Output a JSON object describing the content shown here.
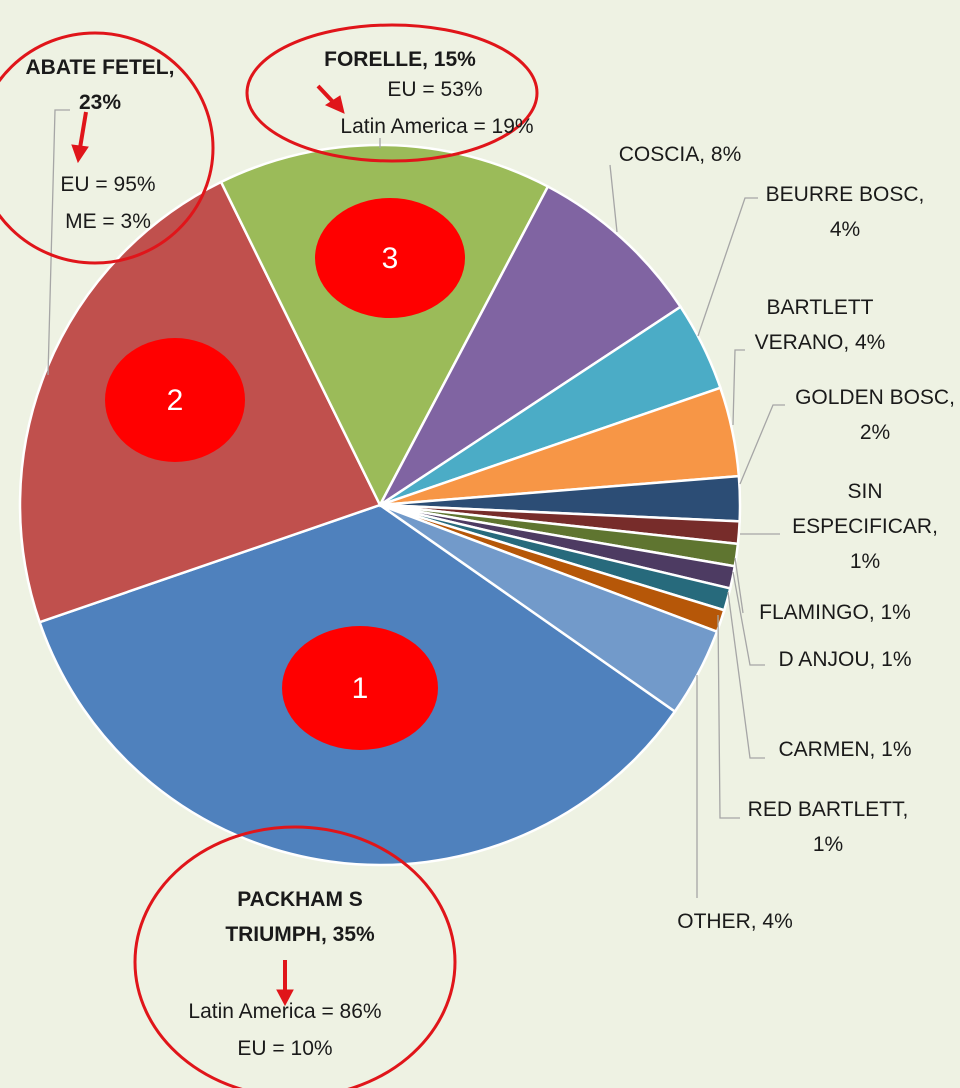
{
  "chart_data": {
    "type": "pie",
    "labels": [
      "PACKHAM S\nTRIUMPH, 35%",
      "ABATE FETEL,\n23%",
      "FORELLE, 15%",
      "COSCIA, 8%",
      "BEURRE BOSC,\n4%",
      "BARTLETT\nVERANO, 4%",
      "GOLDEN BOSC,\n2%",
      "SIN\nESPECIFICAR,\n1%",
      "FLAMINGO, 1%",
      "D ANJOU, 1%",
      "CARMEN, 1%",
      "RED BARTLETT,\n1%",
      "OTHER, 4%"
    ],
    "values": [
      35,
      23,
      15,
      8,
      4,
      4,
      2,
      1,
      1,
      1,
      1,
      1,
      4
    ],
    "colors": [
      "#4f81bd",
      "#c0504d",
      "#9bbb59",
      "#8064a2",
      "#4bacc6",
      "#f79646",
      "#2c4d75",
      "#772c2a",
      "#5f7530",
      "#4d3b62",
      "#276a7c",
      "#b65708",
      "#729aca"
    ],
    "annotations": [
      {
        "text": "EU = 95%"
      },
      {
        "text": "ME = 3%"
      },
      {
        "text": "EU = 53%"
      },
      {
        "text": "Latin America = 19%"
      },
      {
        "text": "Latin America = 86%"
      },
      {
        "text": "EU = 10%"
      },
      {
        "text": "1"
      },
      {
        "text": "2"
      },
      {
        "text": "3"
      }
    ]
  }
}
